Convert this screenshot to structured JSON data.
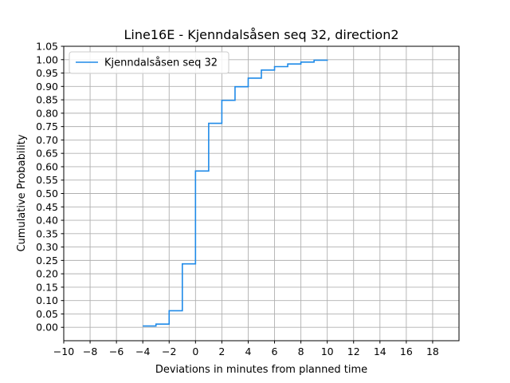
{
  "chart_data": {
    "type": "line",
    "step": "post",
    "title": "Line16E - Kjenndalsåsen seq 32, direction2",
    "xlabel": "Deviations in minutes from planned time",
    "ylabel": "Cumulative Probability",
    "xlim": [
      -10,
      20
    ],
    "ylim": [
      -0.05,
      1.05
    ],
    "xticks": [
      -10,
      -8,
      -6,
      -4,
      -2,
      0,
      2,
      4,
      6,
      8,
      10,
      12,
      14,
      16,
      18
    ],
    "xtick_labels": [
      "−10",
      "−8",
      "−6",
      "−4",
      "−2",
      "0",
      "2",
      "4",
      "6",
      "8",
      "10",
      "12",
      "14",
      "16",
      "18"
    ],
    "yticks": [
      0.0,
      0.05,
      0.1,
      0.15,
      0.2,
      0.25,
      0.3,
      0.35,
      0.4,
      0.45,
      0.5,
      0.55,
      0.6,
      0.65,
      0.7,
      0.75,
      0.8,
      0.85,
      0.9,
      0.95,
      1.0,
      1.05
    ],
    "ytick_labels": [
      "0.00",
      "0.05",
      "0.10",
      "0.15",
      "0.20",
      "0.25",
      "0.30",
      "0.35",
      "0.40",
      "0.45",
      "0.50",
      "0.55",
      "0.60",
      "0.65",
      "0.70",
      "0.75",
      "0.80",
      "0.85",
      "0.90",
      "0.95",
      "1.00",
      "1.05"
    ],
    "grid": true,
    "legend_position": "top-left",
    "series": [
      {
        "name": "Kjenndalsåsen seq 32",
        "color": "#1f8ae8",
        "x": [
          -4,
          -3,
          -2,
          -1,
          0,
          1,
          2,
          3,
          4,
          5,
          6,
          7,
          8,
          9,
          10
        ],
        "y": [
          0.005,
          0.012,
          0.062,
          0.237,
          0.584,
          0.762,
          0.848,
          0.899,
          0.931,
          0.961,
          0.974,
          0.984,
          0.991,
          0.998,
          1.0
        ]
      }
    ]
  }
}
